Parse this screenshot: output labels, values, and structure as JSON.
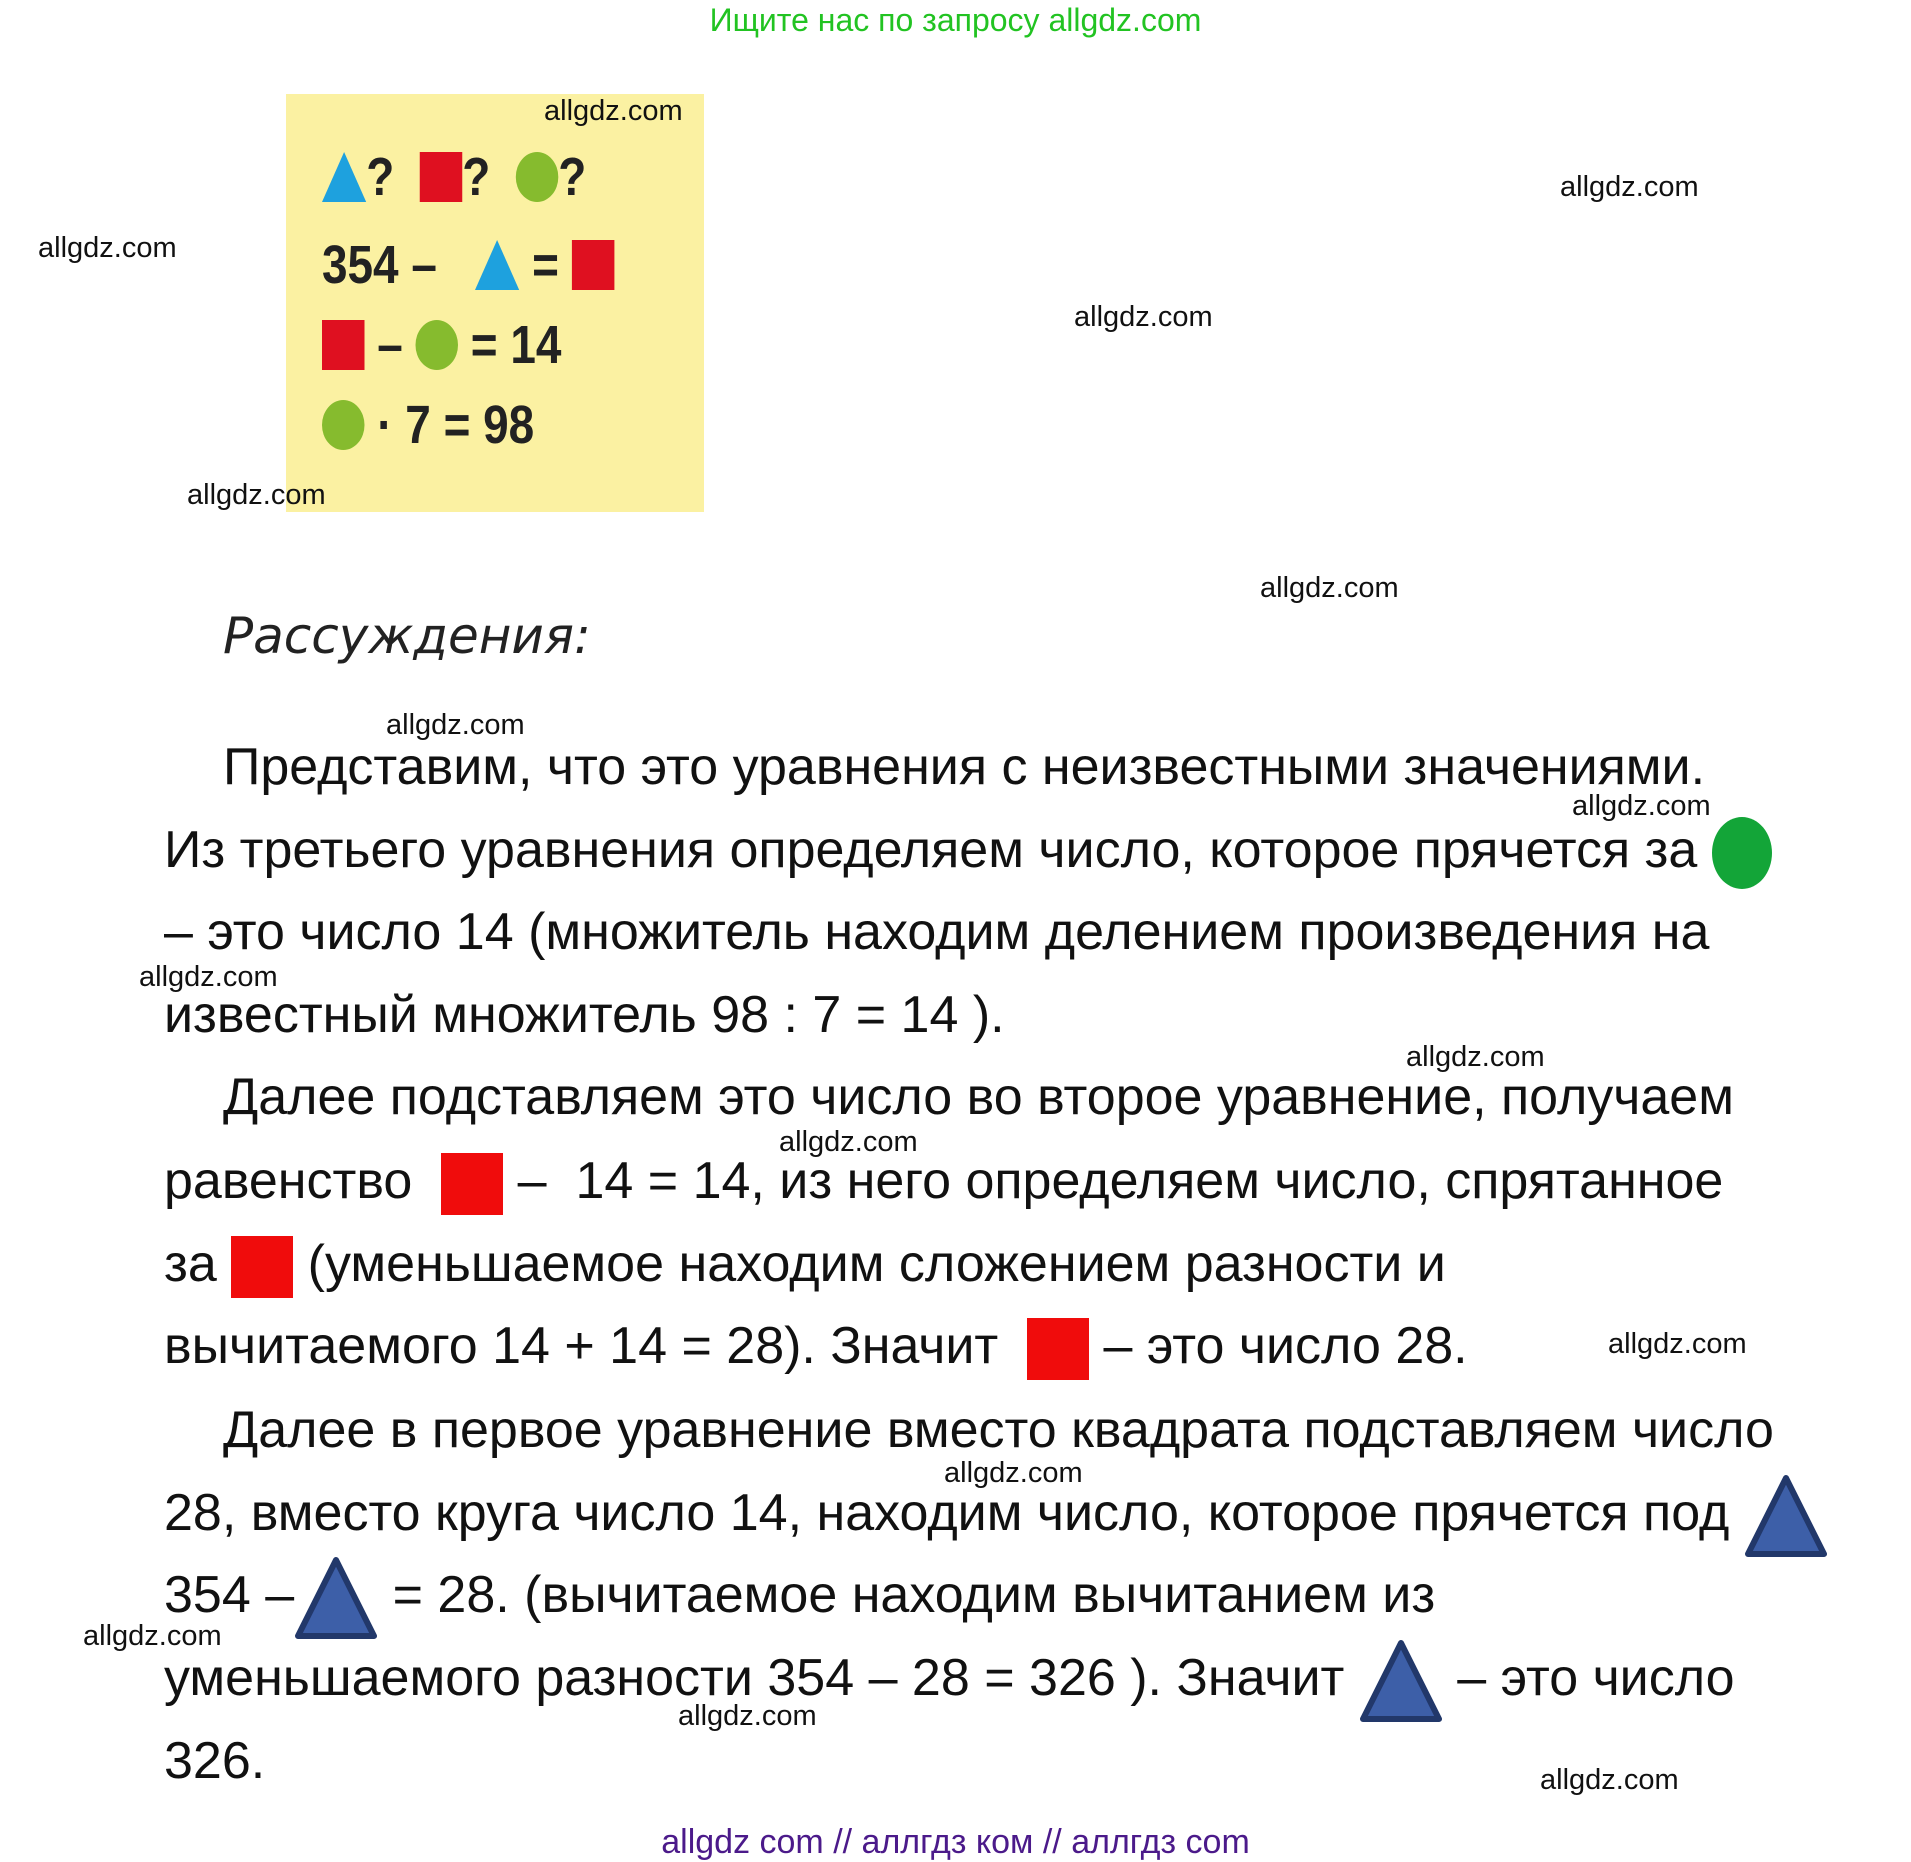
{
  "banner": "Ищите нас по запросу allgdz.com",
  "watermark": "allgdz.com",
  "puzzle": {
    "row1": [
      "?",
      "?",
      "?"
    ],
    "row2": {
      "left": "354 – ",
      "eq": " = "
    },
    "row3": {
      "minus": " – ",
      "right": " = 14"
    },
    "row4": {
      "right": " · 7 = 98"
    }
  },
  "heading": "Рассуждения:",
  "lines": [
    [
      {
        "t": "Представим, что это уравнения с неизвестными значениями."
      }
    ],
    [
      {
        "t": "Из третьего уравнения определяем число, которое прячется за "
      },
      {
        "shape": "circle"
      }
    ],
    [
      {
        "t": "– это число 14 (множитель находим делением произведения на"
      }
    ],
    [
      {
        "t": "известный множитель 98 : 7 = 14 )."
      }
    ],
    [
      {
        "t": "Далее подставляем это число во второе уравнение, получаем"
      }
    ],
    [
      {
        "t": "равенство  "
      },
      {
        "shape": "square"
      },
      {
        "t": " –  14 = 14, из него определяем число, спрятанное"
      }
    ],
    [
      {
        "t": "за "
      },
      {
        "shape": "square"
      },
      {
        "t": " (уменьшаемое находим сложением разности и"
      }
    ],
    [
      {
        "t": "вычитаемого 14 + 14 = 28). Значит  "
      },
      {
        "shape": "square"
      },
      {
        "t": " – это число 28."
      }
    ],
    [
      {
        "t": "Далее в первое уравнение вместо квадрата подставляем число"
      }
    ],
    [
      {
        "t": "28, вместо круга число 14, находим число, которое прячется под "
      },
      {
        "shape": "triangle"
      }
    ],
    [
      {
        "t": "354 –"
      },
      {
        "shape": "triangle"
      },
      {
        "t": " = 28. (вычитаемое находим вычитанием из"
      }
    ],
    [
      {
        "t": "уменьшаемого разности 354 – 28 = 326 ). Значит "
      },
      {
        "shape": "triangle"
      },
      {
        "t": " – это число"
      }
    ],
    [
      {
        "t": "326."
      }
    ]
  ],
  "footer": "allgdz com  //  аллгдз ком  //  аллгдз com",
  "colors": {
    "banner": "#22c322",
    "footer": "#4b1a8a",
    "puzzle_bg": "#fbf1a2",
    "circle": "#13a538",
    "square": "#f00c0c",
    "triangle": "#3d5fa8"
  }
}
